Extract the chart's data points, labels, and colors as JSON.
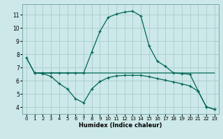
{
  "xlabel": "Humidex (Indice chaleur)",
  "bg_color": "#cce8e8",
  "grid_color": "#aacccc",
  "line_color": "#006655",
  "xlim": [
    -0.5,
    23.5
  ],
  "ylim": [
    3.5,
    11.8
  ],
  "xticks": [
    0,
    1,
    2,
    3,
    4,
    5,
    6,
    7,
    8,
    9,
    10,
    11,
    12,
    13,
    14,
    15,
    16,
    17,
    18,
    19,
    20,
    21,
    22,
    23
  ],
  "yticks": [
    4,
    5,
    6,
    7,
    8,
    9,
    10,
    11
  ],
  "line1_x": [
    0,
    1,
    2,
    3,
    4,
    5,
    6,
    7,
    8,
    9,
    10,
    11,
    12,
    13,
    14,
    15,
    16,
    17,
    18,
    19,
    20,
    21,
    22,
    23
  ],
  "line1_y": [
    7.75,
    6.6,
    6.6,
    6.6,
    6.6,
    6.6,
    6.6,
    6.6,
    6.6,
    6.6,
    6.6,
    6.6,
    6.6,
    6.6,
    6.6,
    6.6,
    6.6,
    6.6,
    6.6,
    6.6,
    6.6,
    6.6,
    6.6,
    6.6
  ],
  "line2_x": [
    0,
    1,
    2,
    3,
    4,
    5,
    6,
    7,
    8,
    9,
    10,
    11,
    12,
    13,
    14,
    15,
    16,
    17,
    18,
    19,
    20,
    21,
    22,
    23
  ],
  "line2_y": [
    7.75,
    6.6,
    6.55,
    6.35,
    5.8,
    5.4,
    4.65,
    4.35,
    5.4,
    5.95,
    6.25,
    6.38,
    6.42,
    6.42,
    6.42,
    6.32,
    6.18,
    6.05,
    5.92,
    5.78,
    5.62,
    5.22,
    4.05,
    3.85
  ],
  "line3_x": [
    1,
    2,
    3,
    4,
    5,
    6,
    7,
    8,
    9,
    10,
    11,
    12,
    13,
    14,
    15,
    16,
    17,
    18,
    19,
    20,
    21,
    22,
    23
  ],
  "line3_y": [
    6.6,
    6.6,
    6.6,
    6.6,
    6.6,
    6.6,
    6.6,
    8.2,
    9.75,
    10.8,
    11.05,
    11.2,
    11.28,
    10.9,
    8.65,
    7.5,
    7.1,
    6.6,
    6.55,
    6.5,
    5.25,
    4.05,
    3.85
  ]
}
